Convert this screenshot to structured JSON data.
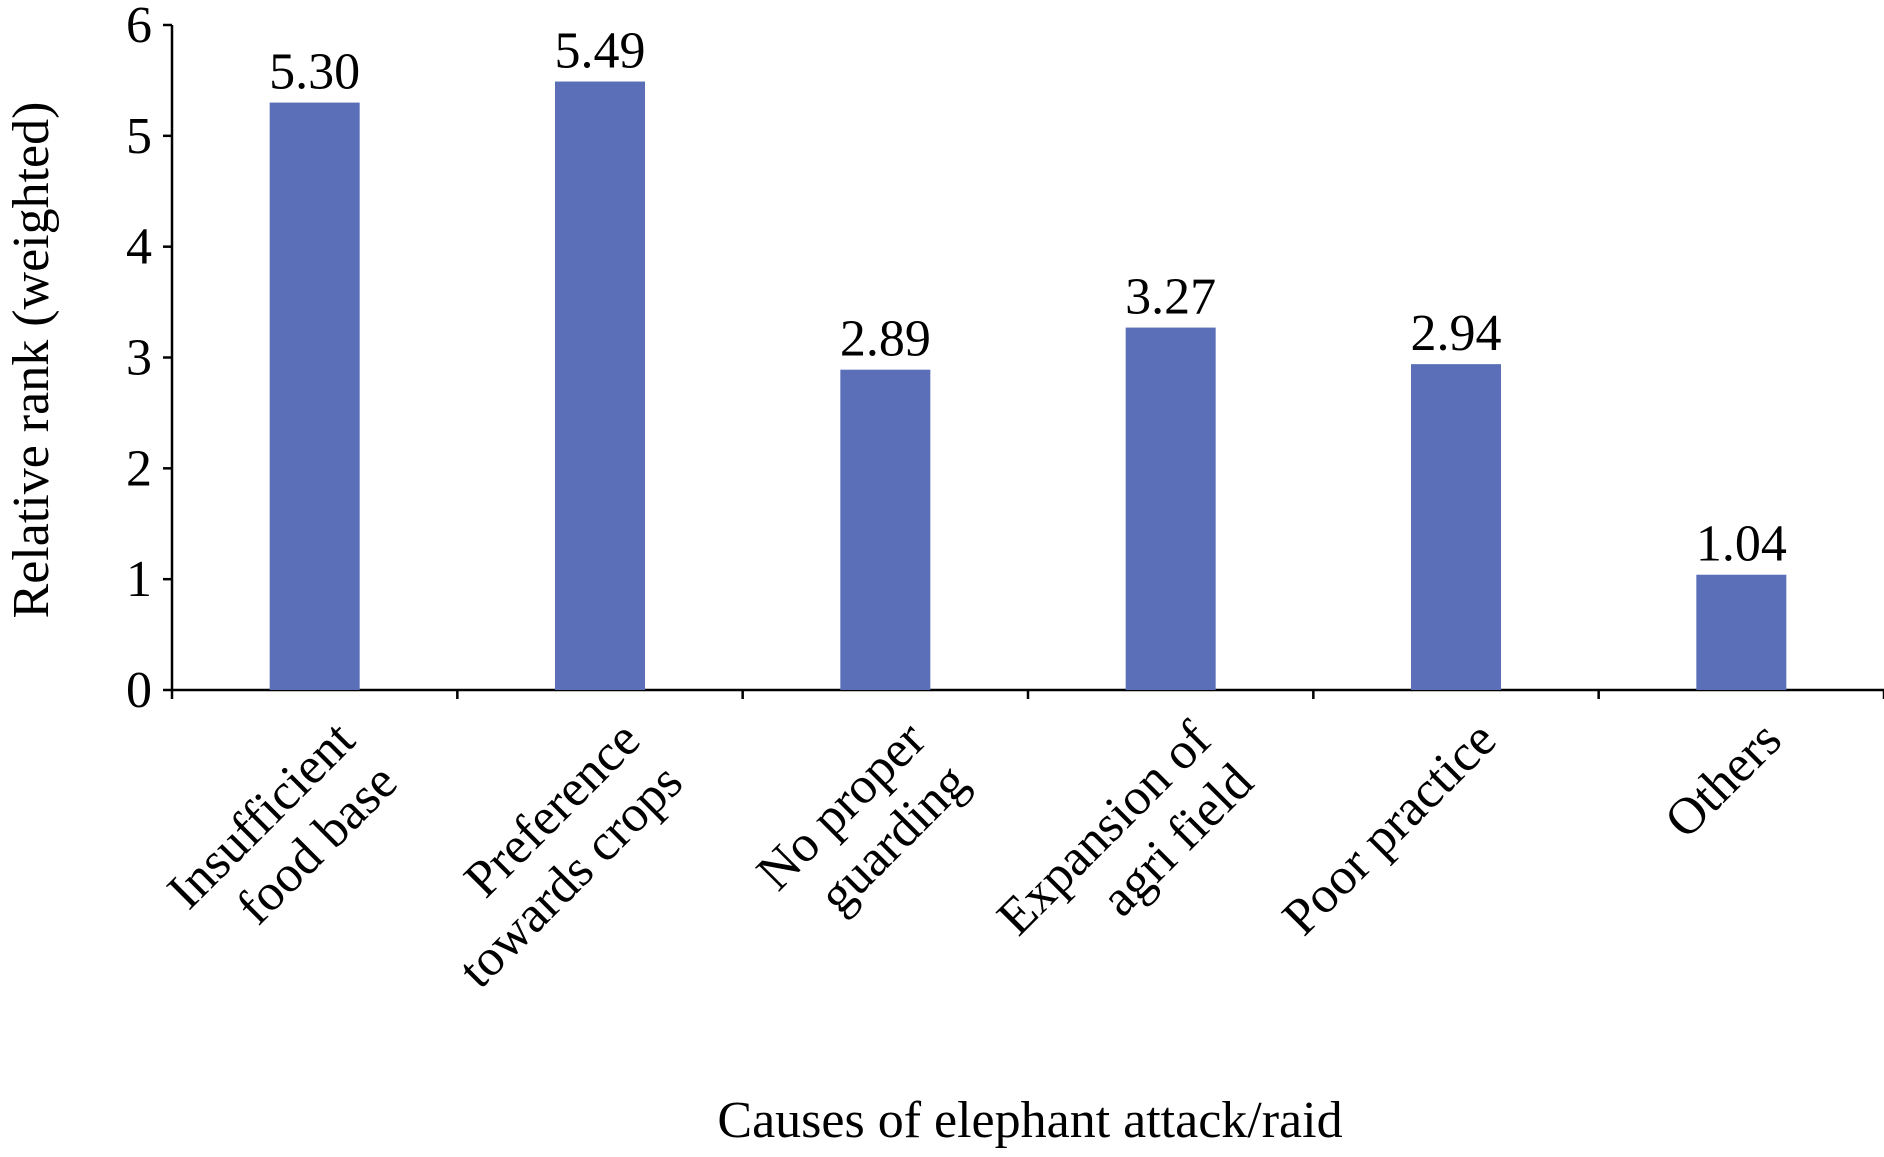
{
  "chart_data": {
    "type": "bar",
    "categories": [
      [
        "Insufficient",
        "food base"
      ],
      [
        "Preference",
        "towards crops"
      ],
      [
        "No proper",
        "guarding"
      ],
      [
        "Expansion of",
        "agri field"
      ],
      [
        "Poor practice"
      ],
      [
        "Others"
      ]
    ],
    "values": [
      5.3,
      5.49,
      2.89,
      3.27,
      2.94,
      1.04
    ],
    "data_labels": [
      "5.30",
      "5.49",
      "2.89",
      "3.27",
      "2.94",
      "1.04"
    ],
    "title": "",
    "xlabel": "Causes of elephant attack/raid",
    "ylabel": "Relative rank (weighted)",
    "ylim": [
      0,
      6
    ],
    "yticks": [
      "0",
      "1",
      "2",
      "3",
      "4",
      "5",
      "6"
    ],
    "grid": false,
    "legend": "none",
    "bar_color": "#5a6fb8",
    "axis_color": "#000000"
  }
}
